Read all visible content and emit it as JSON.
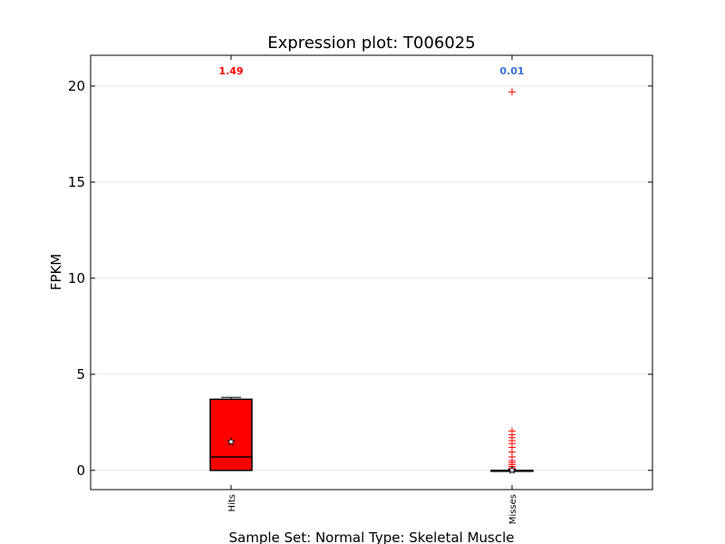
{
  "chart_data": {
    "type": "box",
    "title": "Expression plot: T006025",
    "xlabel": "Sample Set: Normal Type: Skeletal Muscle",
    "ylabel": "FPKM",
    "ylim": [
      -1,
      21.6
    ],
    "yticks": [
      0,
      5,
      10,
      15,
      20
    ],
    "grid": "horizontal",
    "categories": [
      "Hits",
      "Misses"
    ],
    "boxes": [
      {
        "category": "Hits",
        "min": 0.0,
        "q1": 0.0,
        "median": 0.7,
        "q3": 3.7,
        "max": 3.8,
        "mean": 1.49,
        "mean_label": "1.49",
        "outliers": [],
        "box_color": "#ff0000",
        "label_color": "#ff0000"
      },
      {
        "category": "Misses",
        "min": 0.0,
        "q1": 0.0,
        "median": 0.0,
        "q3": 0.0,
        "max": 0.0,
        "mean": 0.01,
        "mean_label": "0.01",
        "outliers": [
          19.7,
          2.05,
          1.85,
          1.7,
          1.55,
          1.4,
          1.2,
          0.95,
          0.7,
          0.5,
          0.4,
          0.3,
          0.2,
          0.12,
          0.06
        ],
        "box_color": "#ff0000",
        "label_color": "#3a6fd8"
      }
    ],
    "outlier_color": "#ff0000"
  }
}
